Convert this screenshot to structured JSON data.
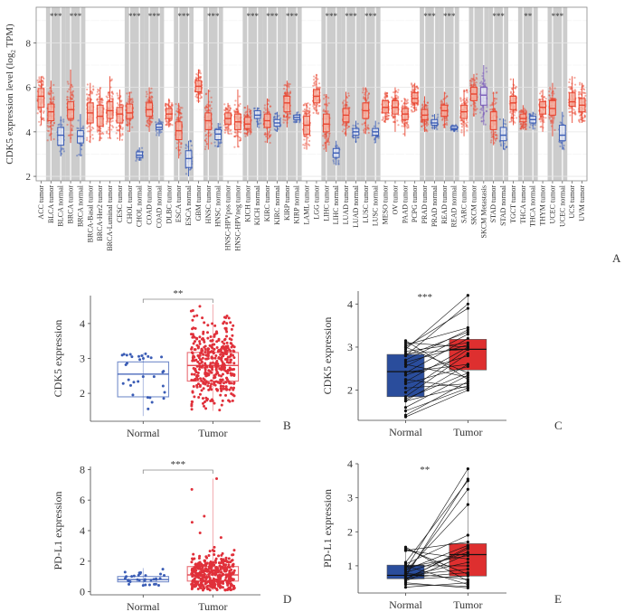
{
  "chart_data": [
    {
      "panel": "A",
      "type": "box",
      "ylabel": "CDK5 expression level (log2 TPM)",
      "ylabel_main": "CDK5 expression level (",
      "ylabel_log": "log",
      "ylabel_sub": "2",
      "ylabel_tail": " TPM)",
      "ylim": [
        1.8,
        9.6
      ],
      "yticks": [
        2,
        4,
        6,
        8
      ],
      "grid": true,
      "colors": {
        "tumor": "#e8442f",
        "normal": "#3a5cb5",
        "metastasis": "#7a5cb8",
        "band": "#cccccc"
      },
      "categories": [
        {
          "label": "ACC tumor",
          "kind": "tumor",
          "median": 5.6,
          "q1": 5.1,
          "q3": 5.95,
          "lo": 4.3,
          "hi": 6.5
        },
        {
          "label": "BLCA tumor",
          "kind": "tumor",
          "median": 4.9,
          "q1": 4.5,
          "q3": 5.25,
          "lo": 3.6,
          "hi": 6.3
        },
        {
          "label": "BLCA normal",
          "kind": "normal",
          "median": 3.85,
          "q1": 3.4,
          "q3": 4.2,
          "lo": 2.9,
          "hi": 4.7
        },
        {
          "label": "BRCA tumor",
          "kind": "tumor",
          "median": 5.0,
          "q1": 4.6,
          "q3": 5.35,
          "lo": 3.5,
          "hi": 6.8
        },
        {
          "label": "BRCA normal",
          "kind": "normal",
          "median": 3.8,
          "q1": 3.5,
          "q3": 4.05,
          "lo": 2.9,
          "hi": 4.8
        },
        {
          "label": "BRCA-Basal tumor",
          "kind": "tumor",
          "median": 4.85,
          "q1": 4.4,
          "q3": 5.3,
          "lo": 3.5,
          "hi": 6.2
        },
        {
          "label": "BRCA-Her2 tumor",
          "kind": "tumor",
          "median": 4.7,
          "q1": 4.25,
          "q3": 5.2,
          "lo": 3.6,
          "hi": 6.0
        },
        {
          "label": "BRCA-Luminal tumor",
          "kind": "tumor",
          "median": 4.95,
          "q1": 4.6,
          "q3": 5.35,
          "lo": 3.7,
          "hi": 6.5
        },
        {
          "label": "CESC tumor",
          "kind": "tumor",
          "median": 4.8,
          "q1": 4.4,
          "q3": 5.1,
          "lo": 3.6,
          "hi": 5.9
        },
        {
          "label": "CHOL tumor",
          "kind": "tumor",
          "median": 4.85,
          "q1": 4.6,
          "q3": 5.25,
          "lo": 4.0,
          "hi": 5.8
        },
        {
          "label": "CHOL normal",
          "kind": "normal",
          "median": 2.95,
          "q1": 2.85,
          "q3": 3.1,
          "lo": 2.7,
          "hi": 3.3
        },
        {
          "label": "COAD tumor",
          "kind": "tumor",
          "median": 5.0,
          "q1": 4.7,
          "q3": 5.3,
          "lo": 4.0,
          "hi": 6.0
        },
        {
          "label": "COAD normal",
          "kind": "normal",
          "median": 4.2,
          "q1": 4.1,
          "q3": 4.35,
          "lo": 3.8,
          "hi": 4.6
        },
        {
          "label": "DLBC tumor",
          "kind": "tumor",
          "median": 4.8,
          "q1": 4.6,
          "q3": 5.05,
          "lo": 4.2,
          "hi": 5.5
        },
        {
          "label": "ESCA tumor",
          "kind": "tumor",
          "median": 4.05,
          "q1": 3.65,
          "q3": 4.45,
          "lo": 2.8,
          "hi": 5.3
        },
        {
          "label": "ESCA normal",
          "kind": "normal",
          "median": 2.8,
          "q1": 2.4,
          "q3": 3.15,
          "lo": 2.0,
          "hi": 3.6
        },
        {
          "label": "GBM tumor",
          "kind": "tumor",
          "median": 6.05,
          "q1": 5.8,
          "q3": 6.3,
          "lo": 5.3,
          "hi": 6.8
        },
        {
          "label": "HNSC tumor",
          "kind": "tumor",
          "median": 4.5,
          "q1": 4.1,
          "q3": 4.85,
          "lo": 3.2,
          "hi": 5.9
        },
        {
          "label": "HNSC normal",
          "kind": "normal",
          "median": 3.9,
          "q1": 3.65,
          "q3": 4.1,
          "lo": 3.3,
          "hi": 4.4
        },
        {
          "label": "HNSC-HPVpos tumor",
          "kind": "tumor",
          "median": 4.6,
          "q1": 4.35,
          "q3": 4.85,
          "lo": 3.9,
          "hi": 5.3
        },
        {
          "label": "HNSC-HPVneg tumor",
          "kind": "tumor",
          "median": 4.45,
          "q1": 4.1,
          "q3": 4.8,
          "lo": 3.3,
          "hi": 5.9
        },
        {
          "label": "KICH tumor",
          "kind": "tumor",
          "median": 4.35,
          "q1": 4.15,
          "q3": 4.65,
          "lo": 3.8,
          "hi": 5.2
        },
        {
          "label": "KICH normal",
          "kind": "normal",
          "median": 4.75,
          "q1": 4.6,
          "q3": 4.95,
          "lo": 4.2,
          "hi": 5.1
        },
        {
          "label": "KIRC tumor",
          "kind": "tumor",
          "median": 4.5,
          "q1": 4.2,
          "q3": 4.8,
          "lo": 3.5,
          "hi": 5.5
        },
        {
          "label": "KIRC normal",
          "kind": "normal",
          "median": 4.4,
          "q1": 4.25,
          "q3": 4.55,
          "lo": 4.0,
          "hi": 4.9
        },
        {
          "label": "KIRP tumor",
          "kind": "tumor",
          "median": 5.3,
          "q1": 4.9,
          "q3": 5.6,
          "lo": 4.2,
          "hi": 6.3
        },
        {
          "label": "KIRP normal",
          "kind": "normal",
          "median": 4.65,
          "q1": 4.55,
          "q3": 4.75,
          "lo": 4.4,
          "hi": 4.9
        },
        {
          "label": "LAML tumor",
          "kind": "tumor",
          "median": 4.3,
          "q1": 3.9,
          "q3": 4.7,
          "lo": 3.2,
          "hi": 5.3
        },
        {
          "label": "LGG tumor",
          "kind": "tumor",
          "median": 5.6,
          "q1": 5.3,
          "q3": 5.9,
          "lo": 4.8,
          "hi": 6.6
        },
        {
          "label": "LIHC tumor",
          "kind": "tumor",
          "median": 4.35,
          "q1": 4.0,
          "q3": 4.8,
          "lo": 3.1,
          "hi": 5.7
        },
        {
          "label": "LIHC normal",
          "kind": "normal",
          "median": 3.05,
          "q1": 2.85,
          "q3": 3.25,
          "lo": 2.5,
          "hi": 3.6
        },
        {
          "label": "LUAD tumor",
          "kind": "tumor",
          "median": 4.75,
          "q1": 4.45,
          "q3": 5.05,
          "lo": 3.8,
          "hi": 5.8
        },
        {
          "label": "LUAD normal",
          "kind": "normal",
          "median": 4.0,
          "q1": 3.85,
          "q3": 4.15,
          "lo": 3.5,
          "hi": 4.5
        },
        {
          "label": "LUSC tumor",
          "kind": "tumor",
          "median": 4.95,
          "q1": 4.6,
          "q3": 5.3,
          "lo": 3.9,
          "hi": 6.0
        },
        {
          "label": "LUSC normal",
          "kind": "normal",
          "median": 4.0,
          "q1": 3.85,
          "q3": 4.15,
          "lo": 3.5,
          "hi": 4.5
        },
        {
          "label": "MESO tumor",
          "kind": "tumor",
          "median": 5.1,
          "q1": 4.85,
          "q3": 5.4,
          "lo": 4.4,
          "hi": 5.8
        },
        {
          "label": "OV tumor",
          "kind": "tumor",
          "median": 5.1,
          "q1": 4.8,
          "q3": 5.4,
          "lo": 4.0,
          "hi": 6.0
        },
        {
          "label": "PAAD tumor",
          "kind": "tumor",
          "median": 4.8,
          "q1": 4.55,
          "q3": 5.05,
          "lo": 3.8,
          "hi": 5.5
        },
        {
          "label": "PCPG tumor",
          "kind": "tumor",
          "median": 5.5,
          "q1": 5.3,
          "q3": 5.75,
          "lo": 4.9,
          "hi": 6.2
        },
        {
          "label": "PRAD tumor",
          "kind": "tumor",
          "median": 4.75,
          "q1": 4.55,
          "q3": 5.0,
          "lo": 4.0,
          "hi": 5.6
        },
        {
          "label": "PRAD normal",
          "kind": "normal",
          "median": 4.4,
          "q1": 4.3,
          "q3": 4.55,
          "lo": 4.1,
          "hi": 4.8
        },
        {
          "label": "READ tumor",
          "kind": "tumor",
          "median": 4.95,
          "q1": 4.7,
          "q3": 5.2,
          "lo": 4.2,
          "hi": 5.8
        },
        {
          "label": "READ normal",
          "kind": "normal",
          "median": 4.15,
          "q1": 4.1,
          "q3": 4.25,
          "lo": 4.0,
          "hi": 4.3
        },
        {
          "label": "SARC tumor",
          "kind": "tumor",
          "median": 4.9,
          "q1": 4.6,
          "q3": 5.2,
          "lo": 3.8,
          "hi": 5.9
        },
        {
          "label": "SKCM tumor",
          "kind": "tumor",
          "median": 5.7,
          "q1": 5.4,
          "q3": 6.0,
          "lo": 4.7,
          "hi": 6.6
        },
        {
          "label": "SKCM Metastasis",
          "kind": "metastasis",
          "median": 5.65,
          "q1": 5.2,
          "q3": 6.0,
          "lo": 4.3,
          "hi": 7.0
        },
        {
          "label": "STAD tumor",
          "kind": "tumor",
          "median": 4.5,
          "q1": 4.1,
          "q3": 4.9,
          "lo": 3.4,
          "hi": 5.8
        },
        {
          "label": "STAD normal",
          "kind": "normal",
          "median": 3.85,
          "q1": 3.6,
          "q3": 4.2,
          "lo": 3.2,
          "hi": 4.6
        },
        {
          "label": "TGCT tumor",
          "kind": "tumor",
          "median": 5.3,
          "q1": 5.0,
          "q3": 5.6,
          "lo": 4.3,
          "hi": 6.4
        },
        {
          "label": "THCA tumor",
          "kind": "tumor",
          "median": 4.6,
          "q1": 4.45,
          "q3": 4.8,
          "lo": 4.1,
          "hi": 5.2
        },
        {
          "label": "THCA normal",
          "kind": "normal",
          "median": 4.55,
          "q1": 4.4,
          "q3": 4.7,
          "lo": 4.1,
          "hi": 4.9
        },
        {
          "label": "THYM tumor",
          "kind": "tumor",
          "median": 5.1,
          "q1": 4.8,
          "q3": 5.35,
          "lo": 4.0,
          "hi": 5.9
        },
        {
          "label": "UCEC tumor",
          "kind": "tumor",
          "median": 5.05,
          "q1": 4.75,
          "q3": 5.4,
          "lo": 3.8,
          "hi": 6.2
        },
        {
          "label": "UCEC normal",
          "kind": "normal",
          "median": 3.85,
          "q1": 3.6,
          "q3": 4.3,
          "lo": 3.2,
          "hi": 4.9
        },
        {
          "label": "UCS tumor",
          "kind": "tumor",
          "median": 5.35,
          "q1": 5.15,
          "q3": 5.75,
          "lo": 4.4,
          "hi": 6.5
        },
        {
          "label": "UVM tumor",
          "kind": "tumor",
          "median": 5.2,
          "q1": 4.9,
          "q3": 5.5,
          "lo": 4.4,
          "hi": 6.2
        }
      ],
      "bands": [
        {
          "from": 1,
          "to": 2,
          "sig": "***"
        },
        {
          "from": 3,
          "to": 4,
          "sig": "***"
        },
        {
          "from": 9,
          "to": 10,
          "sig": "***"
        },
        {
          "from": 11,
          "to": 12,
          "sig": "***"
        },
        {
          "from": 14,
          "to": 15,
          "sig": "***"
        },
        {
          "from": 17,
          "to": 18,
          "sig": "***"
        },
        {
          "from": 21,
          "to": 22,
          "sig": "***"
        },
        {
          "from": 23,
          "to": 24,
          "sig": "***"
        },
        {
          "from": 25,
          "to": 26,
          "sig": "***"
        },
        {
          "from": 29,
          "to": 30,
          "sig": "***"
        },
        {
          "from": 31,
          "to": 32,
          "sig": "***"
        },
        {
          "from": 33,
          "to": 34,
          "sig": "***"
        },
        {
          "from": 39,
          "to": 40,
          "sig": "***"
        },
        {
          "from": 41,
          "to": 42,
          "sig": "***"
        },
        {
          "from": 44,
          "to": 45,
          "sig": ""
        },
        {
          "from": 46,
          "to": 47,
          "sig": "***"
        },
        {
          "from": 49,
          "to": 50,
          "sig": "**"
        },
        {
          "from": 52,
          "to": 53,
          "sig": "***"
        }
      ]
    },
    {
      "panel": "B",
      "type": "box",
      "ylabel": "CDK5 expression",
      "categories": [
        "Normal",
        "Tumor"
      ],
      "ylim": [
        1.2,
        4.8
      ],
      "yticks": [
        2,
        3,
        4
      ],
      "significance": "**",
      "series": [
        {
          "name": "Normal",
          "color": "#3a5cb5",
          "median": 2.55,
          "q1": 1.9,
          "q3": 2.9,
          "lo": 1.35,
          "hi": 3.15,
          "n": 32
        },
        {
          "name": "Tumor",
          "color": "#e0303a",
          "median": 2.8,
          "q1": 2.35,
          "q3": 3.17,
          "lo": 1.5,
          "hi": 4.55,
          "n": 400
        }
      ]
    },
    {
      "panel": "C",
      "type": "paired-box",
      "ylabel": "CDK5 expression",
      "categories": [
        "Normal",
        "Tumor"
      ],
      "ylim": [
        1.3,
        4.3
      ],
      "yticks": [
        2,
        3,
        4
      ],
      "significance": "***",
      "series": [
        {
          "name": "Normal",
          "color": "#2a4d9c",
          "median": 2.43,
          "q1": 1.85,
          "q3": 2.83,
          "lo": 1.38,
          "hi": 3.15
        },
        {
          "name": "Tumor",
          "color": "#de2f2f",
          "median": 2.95,
          "q1": 2.47,
          "q3": 3.18,
          "lo": 1.98,
          "hi": 4.2
        }
      ],
      "pairs": [
        [
          1.38,
          2.0
        ],
        [
          1.42,
          2.2
        ],
        [
          1.52,
          2.05
        ],
        [
          1.6,
          2.35
        ],
        [
          1.75,
          2.1
        ],
        [
          1.75,
          2.6
        ],
        [
          1.8,
          2.4
        ],
        [
          1.95,
          2.95
        ],
        [
          2.05,
          2.15
        ],
        [
          2.15,
          2.55
        ],
        [
          2.2,
          3.0
        ],
        [
          2.35,
          2.8
        ],
        [
          2.4,
          3.2
        ],
        [
          2.42,
          2.6
        ],
        [
          2.55,
          3.3
        ],
        [
          2.6,
          2.3
        ],
        [
          2.7,
          3.4
        ],
        [
          2.8,
          4.0
        ],
        [
          2.85,
          2.95
        ],
        [
          2.9,
          3.1
        ],
        [
          2.95,
          4.2
        ],
        [
          3.0,
          2.4
        ],
        [
          3.05,
          3.45
        ],
        [
          3.1,
          3.0
        ],
        [
          3.15,
          2.25
        ],
        [
          2.8,
          3.35
        ],
        [
          2.25,
          2.05
        ],
        [
          1.85,
          2.85
        ],
        [
          2.65,
          3.05
        ],
        [
          3.0,
          3.9
        ]
      ]
    },
    {
      "panel": "D",
      "type": "box",
      "ylabel": "PD-L1 expression",
      "categories": [
        "Normal",
        "Tumor"
      ],
      "ylim": [
        -0.2,
        8.2
      ],
      "yticks": [
        0,
        2,
        4,
        6,
        8
      ],
      "significance": "***",
      "series": [
        {
          "name": "Normal",
          "color": "#3a5cb5",
          "median": 0.8,
          "q1": 0.65,
          "q3": 1.0,
          "lo": 0.35,
          "hi": 1.55,
          "n": 32
        },
        {
          "name": "Tumor",
          "color": "#e0303a",
          "median": 1.1,
          "q1": 0.7,
          "q3": 1.65,
          "lo": 0.1,
          "hi": 7.4,
          "n": 400
        }
      ]
    },
    {
      "panel": "E",
      "type": "paired-box",
      "ylabel": "PD-L1 expression",
      "categories": [
        "Normal",
        "Tumor"
      ],
      "ylim": [
        0.2,
        4.0
      ],
      "yticks": [
        1,
        2,
        3,
        4
      ],
      "significance": "**",
      "series": [
        {
          "name": "Normal",
          "color": "#2a4d9c",
          "median": 0.72,
          "q1": 0.62,
          "q3": 1.02,
          "lo": 0.37,
          "hi": 1.55
        },
        {
          "name": "Tumor",
          "color": "#de2f2f",
          "median": 1.33,
          "q1": 0.7,
          "q3": 1.65,
          "lo": 0.35,
          "hi": 3.85
        }
      ],
      "pairs": [
        [
          0.37,
          0.5
        ],
        [
          0.45,
          0.4
        ],
        [
          0.5,
          0.35
        ],
        [
          0.55,
          1.35
        ],
        [
          0.6,
          0.7
        ],
        [
          0.62,
          1.5
        ],
        [
          0.65,
          0.8
        ],
        [
          0.68,
          3.55
        ],
        [
          0.7,
          1.1
        ],
        [
          0.72,
          0.9
        ],
        [
          0.75,
          3.25
        ],
        [
          0.78,
          0.6
        ],
        [
          0.8,
          1.4
        ],
        [
          0.85,
          2.8
        ],
        [
          0.88,
          1.6
        ],
        [
          0.9,
          3.85
        ],
        [
          0.95,
          1.3
        ],
        [
          1.0,
          0.45
        ],
        [
          1.05,
          1.9
        ],
        [
          1.1,
          3.5
        ],
        [
          1.45,
          1.2
        ],
        [
          1.5,
          0.75
        ],
        [
          1.55,
          0.55
        ],
        [
          1.45,
          1.7
        ],
        [
          1.0,
          1.0
        ],
        [
          0.6,
          1.55
        ]
      ]
    }
  ],
  "panel_labels": {
    "a": "A",
    "b": "B",
    "c": "C",
    "d": "D",
    "e": "E"
  }
}
